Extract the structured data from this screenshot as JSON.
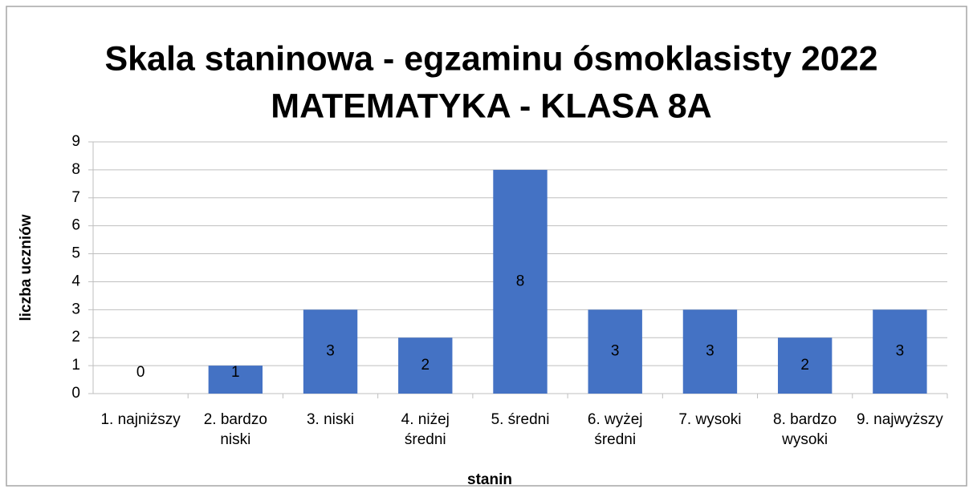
{
  "chart_data": {
    "type": "bar",
    "title": [
      "Skala staninowa  - egzaminu ósmoklasisty 2022",
      "MATEMATYKA - KLASA 8A"
    ],
    "x_label": "stanin",
    "y_label": "liczba uczniów",
    "categories": [
      "1. najniższy",
      "2. bardzo niski",
      "3. niski",
      "4. niżej średni",
      "5. średni",
      "6. wyżej średni",
      "7. wysoki",
      "8. bardzo wysoki",
      "9. najwyższy"
    ],
    "values": [
      0,
      1,
      3,
      2,
      8,
      3,
      3,
      2,
      3
    ],
    "color": "#4472c4",
    "ylim": [
      0,
      9
    ],
    "yticks": [
      0,
      1,
      2,
      3,
      4,
      5,
      6,
      7,
      8,
      9
    ],
    "grid": true
  }
}
